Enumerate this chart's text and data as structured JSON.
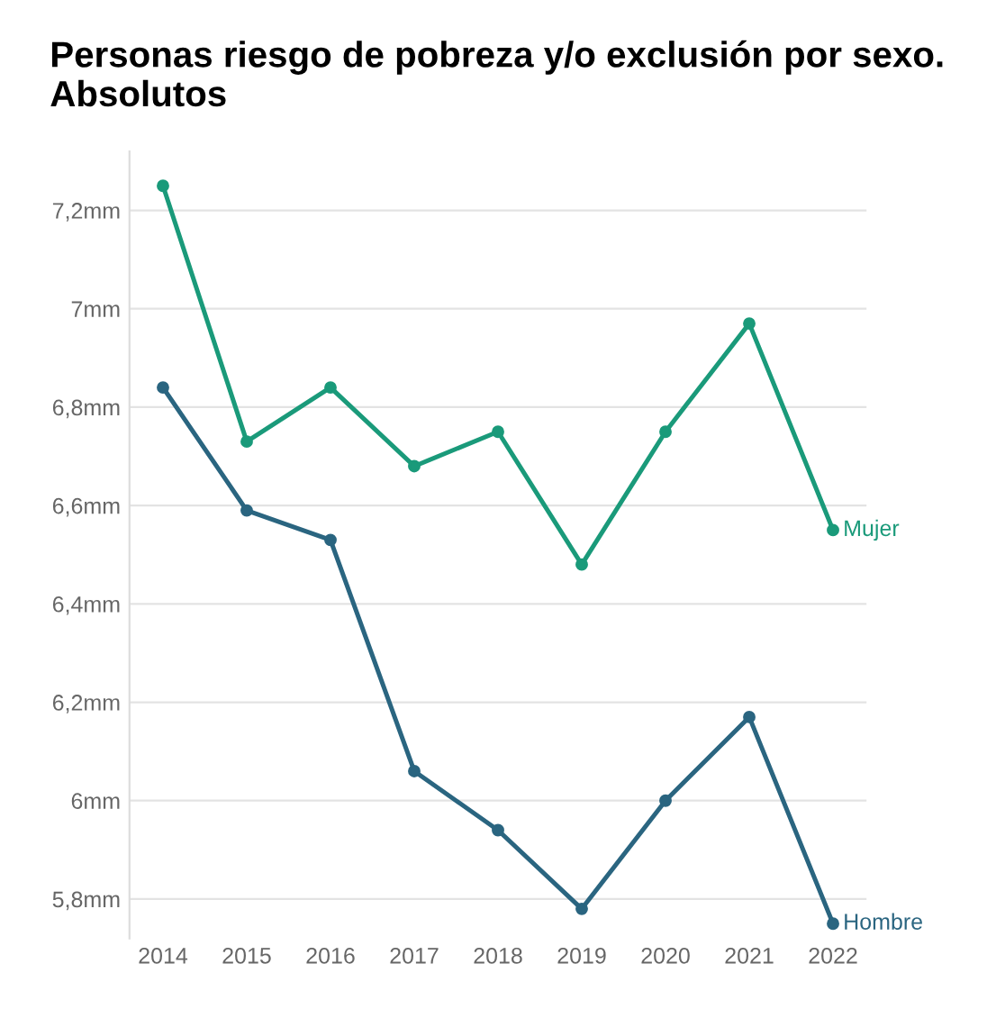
{
  "chart_data": {
    "type": "line",
    "title": "Personas riesgo de pobreza y/o exclusión por sexo. Absolutos",
    "categories": [
      "2014",
      "2015",
      "2016",
      "2017",
      "2018",
      "2019",
      "2020",
      "2021",
      "2022"
    ],
    "series": [
      {
        "name": "Mujer",
        "color": "#1a9a7a",
        "values": [
          7.25,
          6.73,
          6.84,
          6.68,
          6.75,
          6.48,
          6.75,
          6.97,
          6.55
        ]
      },
      {
        "name": "Hombre",
        "color": "#2a6580",
        "values": [
          6.84,
          6.59,
          6.53,
          6.06,
          5.94,
          5.78,
          6.0,
          6.17,
          5.75
        ]
      }
    ],
    "ylim": [
      5.72,
      7.32
    ],
    "yticks": [
      {
        "value": 5.8,
        "label": "5,8mm"
      },
      {
        "value": 6,
        "label": "6mm"
      },
      {
        "value": 6.2,
        "label": "6,2mm"
      },
      {
        "value": 6.4,
        "label": "6,4mm"
      },
      {
        "value": 6.6,
        "label": "6,6mm"
      },
      {
        "value": 6.8,
        "label": "6,8mm"
      },
      {
        "value": 7,
        "label": "7mm"
      },
      {
        "value": 7.2,
        "label": "7,2mm"
      }
    ],
    "grid": "y",
    "marker": "circle",
    "line_style": "solid",
    "legend": false
  }
}
